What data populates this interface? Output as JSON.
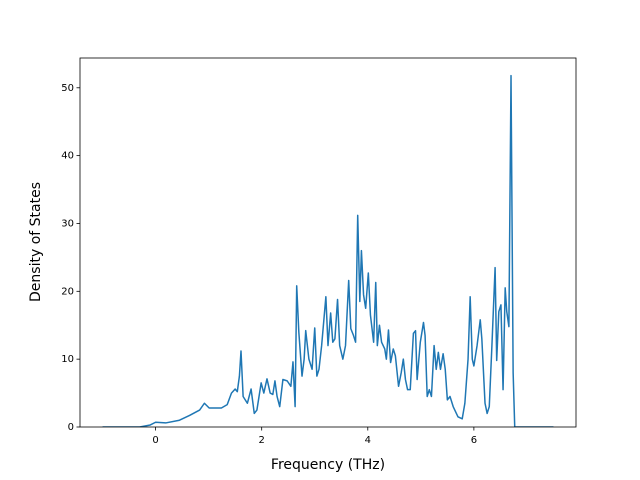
{
  "chart_data": {
    "type": "line",
    "xlabel": "Frequency (THz)",
    "ylabel": "Density of States",
    "x": [
      -1.0,
      -0.3,
      -0.1,
      0,
      0.19,
      0.45,
      0.64,
      0.83,
      0.92,
      1.01,
      1.24,
      1.35,
      1.43,
      1.5,
      1.54,
      1.58,
      1.61,
      1.65,
      1.73,
      1.8,
      1.86,
      1.91,
      1.99,
      2.04,
      2.1,
      2.16,
      2.21,
      2.25,
      2.29,
      2.34,
      2.4,
      2.48,
      2.55,
      2.59,
      2.63,
      2.66,
      2.7,
      2.76,
      2.8,
      2.83,
      2.89,
      2.95,
      3.0,
      3.04,
      3.08,
      3.13,
      3.21,
      3.25,
      3.3,
      3.34,
      3.38,
      3.43,
      3.47,
      3.53,
      3.58,
      3.64,
      3.68,
      3.73,
      3.77,
      3.81,
      3.85,
      3.88,
      3.92,
      3.96,
      4.01,
      4.05,
      4.11,
      4.15,
      4.18,
      4.22,
      4.26,
      4.32,
      4.35,
      4.39,
      4.43,
      4.48,
      4.52,
      4.58,
      4.63,
      4.67,
      4.71,
      4.75,
      4.8,
      4.86,
      4.9,
      4.93,
      4.99,
      5.05,
      5.08,
      5.12,
      5.16,
      5.2,
      5.25,
      5.29,
      5.33,
      5.37,
      5.42,
      5.46,
      5.5,
      5.55,
      5.61,
      5.7,
      5.78,
      5.83,
      5.89,
      5.93,
      5.97,
      6.0,
      6.06,
      6.12,
      6.15,
      6.21,
      6.25,
      6.29,
      6.34,
      6.4,
      6.43,
      6.47,
      6.51,
      6.55,
      6.59,
      6.62,
      6.66,
      6.7,
      6.74,
      6.77,
      7.5
    ],
    "series": [
      {
        "color": "#1f77b4",
        "values": [
          0,
          0,
          0.3,
          0.7,
          0.6,
          1.0,
          1.7,
          2.5,
          3.5,
          2.8,
          2.8,
          3.3,
          5.0,
          5.6,
          5.2,
          7.5,
          11.2,
          4.5,
          3.5,
          5.6,
          2.0,
          2.5,
          6.5,
          5.0,
          7.1,
          5.0,
          4.8,
          6.8,
          4.5,
          3.0,
          7.0,
          6.8,
          6.0,
          9.6,
          3.0,
          20.8,
          14.0,
          7.5,
          10.0,
          14.2,
          10.0,
          8.5,
          14.6,
          7.5,
          8.5,
          12.0,
          19.2,
          12.0,
          16.8,
          12.5,
          13.0,
          18.8,
          12.0,
          10.0,
          12.0,
          21.6,
          14.5,
          13.5,
          12.5,
          31.2,
          18.5,
          26.0,
          19.5,
          17.5,
          22.7,
          16.5,
          12.5,
          21.3,
          12.0,
          15.0,
          12.5,
          11.5,
          10.0,
          14.3,
          9.5,
          11.5,
          10.5,
          6.0,
          8.0,
          10.0,
          7.0,
          5.5,
          5.5,
          13.8,
          14.2,
          7.0,
          12.5,
          15.4,
          13.5,
          4.5,
          5.5,
          4.5,
          12.0,
          8.5,
          11.0,
          8.5,
          10.8,
          8.5,
          4.0,
          4.5,
          3.0,
          1.5,
          1.2,
          3.5,
          10.0,
          19.2,
          10.0,
          9.0,
          12.0,
          15.8,
          13.0,
          3.5,
          2.0,
          3.0,
          12.0,
          23.5,
          9.8,
          17.0,
          18.0,
          5.5,
          20.5,
          17.0,
          14.8,
          51.8,
          8.0,
          0,
          0
        ]
      }
    ],
    "xlim": [
      -1.425,
      7.925
    ],
    "xticks": [
      0,
      2,
      4,
      6
    ],
    "ylim": [
      0,
      54.39
    ],
    "yticks": [
      0,
      10,
      20,
      30,
      40,
      50
    ]
  }
}
